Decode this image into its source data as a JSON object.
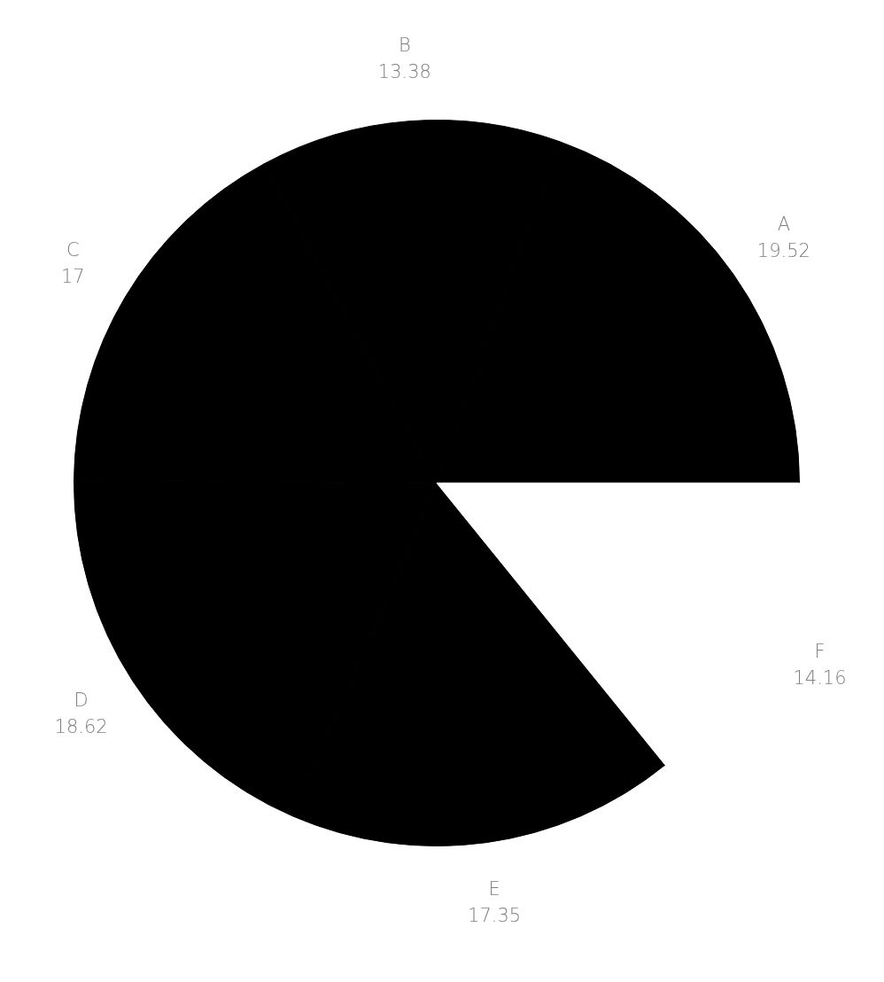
{
  "chart_data": {
    "type": "pie",
    "categories": [
      "A",
      "B",
      "C",
      "D",
      "E",
      "F"
    ],
    "values": [
      19.52,
      13.38,
      17,
      18.62,
      17.35,
      14.16
    ],
    "colors": [
      "#000000",
      "#000000",
      "#000000",
      "#000000",
      "#000000",
      "#ffffff"
    ],
    "data_labels": true,
    "legend": false
  }
}
